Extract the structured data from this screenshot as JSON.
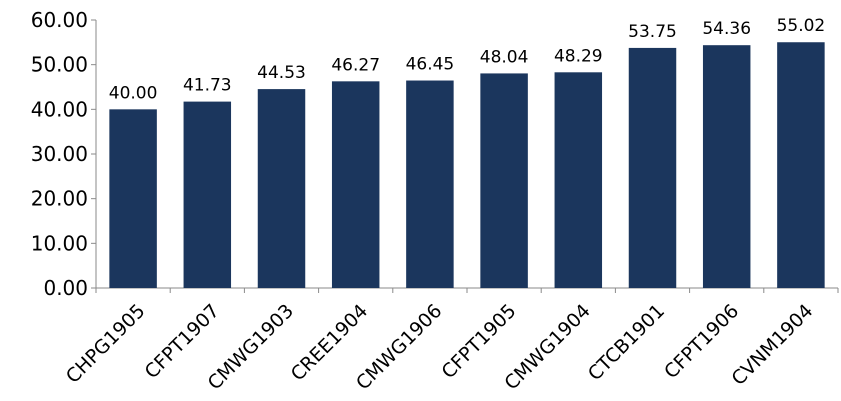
{
  "chart_data": {
    "type": "bar",
    "categories": [
      "CHPG1905",
      "CFPT1907",
      "CMWG1903",
      "CREE1904",
      "CMWG1906",
      "CFPT1905",
      "CMWG1904",
      "CTCB1901",
      "CFPT1906",
      "CVNM1904"
    ],
    "values": [
      40.0,
      41.73,
      44.53,
      46.27,
      46.45,
      48.04,
      48.29,
      53.75,
      54.36,
      55.02
    ],
    "data_labels": [
      "40.00",
      "41.73",
      "44.53",
      "46.27",
      "46.45",
      "48.04",
      "48.29",
      "53.75",
      "54.36",
      "55.02"
    ],
    "y_ticks": [
      "0.00",
      "10.00",
      "20.00",
      "30.00",
      "40.00",
      "50.00",
      "60.00"
    ],
    "ylim": [
      0,
      60
    ],
    "grid": false,
    "legend": "none",
    "colors": {
      "bar": "#1b365d",
      "axis": "#8a8a8a",
      "text": "#000000"
    }
  }
}
